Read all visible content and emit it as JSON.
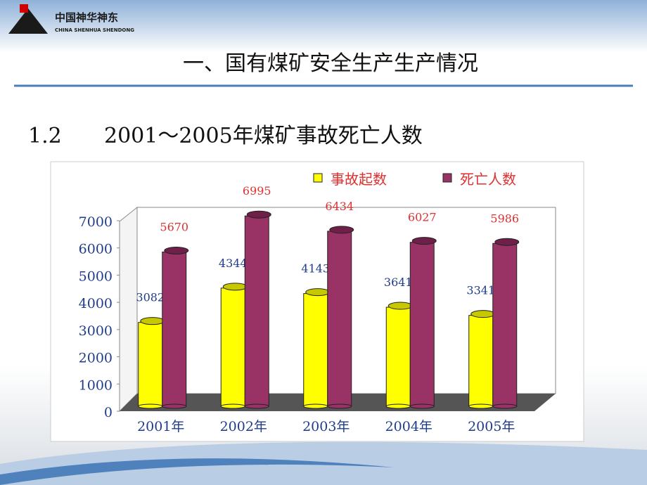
{
  "logo": {
    "name": "中国神华神东",
    "subname": "CHINA SHENHUA SHENDONG"
  },
  "slide_title": "一、国有煤矿安全生产生产情况",
  "section_number": "1.2",
  "chart_data": {
    "type": "bar",
    "title": "2001～2005年煤矿事故死亡人数",
    "categories": [
      "2001年",
      "2002年",
      "2003年",
      "2004年",
      "2005年"
    ],
    "series": [
      {
        "name": "事故起数",
        "color": "#ffff00",
        "values": [
          3082,
          4344,
          4143,
          3641,
          3341
        ]
      },
      {
        "name": "死亡人数",
        "color": "#993366",
        "values": [
          5670,
          6995,
          6434,
          6027,
          5986
        ]
      }
    ],
    "ylim": [
      0,
      7000
    ],
    "yticks": [
      0,
      1000,
      2000,
      3000,
      4000,
      5000,
      6000,
      7000
    ]
  }
}
